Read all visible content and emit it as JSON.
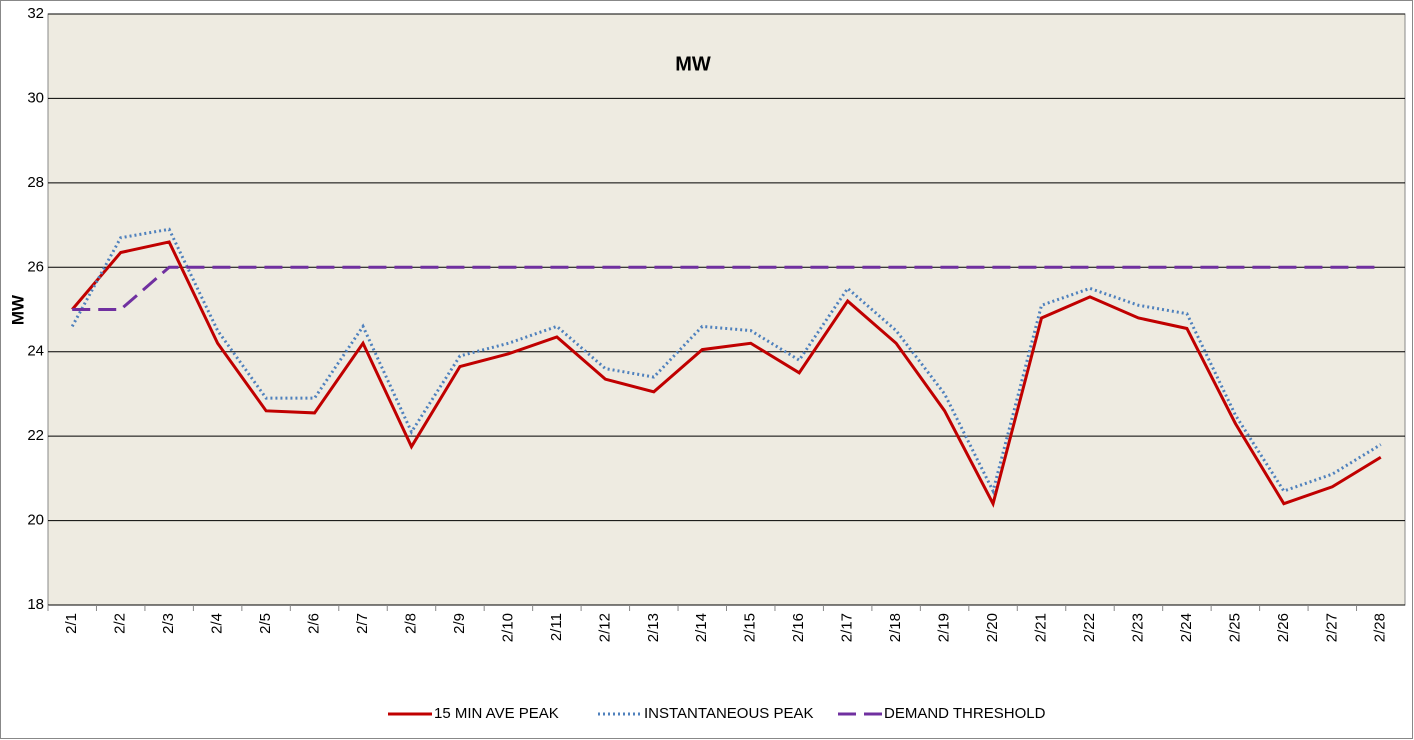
{
  "chart_data": {
    "type": "line",
    "title": "MW",
    "y_label": "MW",
    "categories": [
      "2/1",
      "2/2",
      "2/3",
      "2/4",
      "2/5",
      "2/6",
      "2/7",
      "2/8",
      "2/9",
      "2/10",
      "2/11",
      "2/12",
      "2/13",
      "2/14",
      "2/15",
      "2/16",
      "2/17",
      "2/18",
      "2/19",
      "2/20",
      "2/21",
      "2/22",
      "2/23",
      "2/24",
      "2/25",
      "2/26",
      "2/27",
      "2/28"
    ],
    "series": [
      {
        "name": "15 MIN AVE PEAK",
        "color": "#c00000",
        "style": "solid",
        "values": [
          25.0,
          26.35,
          26.6,
          24.2,
          22.6,
          22.55,
          24.2,
          21.75,
          23.65,
          23.95,
          24.35,
          23.35,
          23.05,
          24.05,
          24.2,
          23.5,
          25.2,
          24.2,
          22.6,
          20.4,
          24.8,
          25.3,
          24.8,
          24.55,
          22.3,
          20.4,
          20.8,
          21.5
        ]
      },
      {
        "name": "INSTANTANEOUS PEAK",
        "color": "#4f81bd",
        "style": "dotted",
        "values": [
          24.6,
          26.7,
          26.9,
          24.5,
          22.9,
          22.9,
          24.6,
          22.1,
          23.9,
          24.2,
          24.6,
          23.6,
          23.4,
          24.6,
          24.5,
          23.8,
          25.5,
          24.5,
          23.0,
          20.7,
          25.1,
          25.5,
          25.1,
          24.9,
          22.5,
          20.7,
          21.1,
          21.8
        ]
      },
      {
        "name": "DEMAND THRESHOLD",
        "color": "#7030a0",
        "style": "dashed",
        "values": [
          25,
          25,
          26,
          26,
          26,
          26,
          26,
          26,
          26,
          26,
          26,
          26,
          26,
          26,
          26,
          26,
          26,
          26,
          26,
          26,
          26,
          26,
          26,
          26,
          26,
          26,
          26,
          26
        ]
      }
    ],
    "ylim": [
      18,
      32
    ],
    "yticks": [
      18,
      20,
      22,
      24,
      26,
      28,
      30,
      32
    ],
    "grid": true,
    "legend": "bottom"
  }
}
